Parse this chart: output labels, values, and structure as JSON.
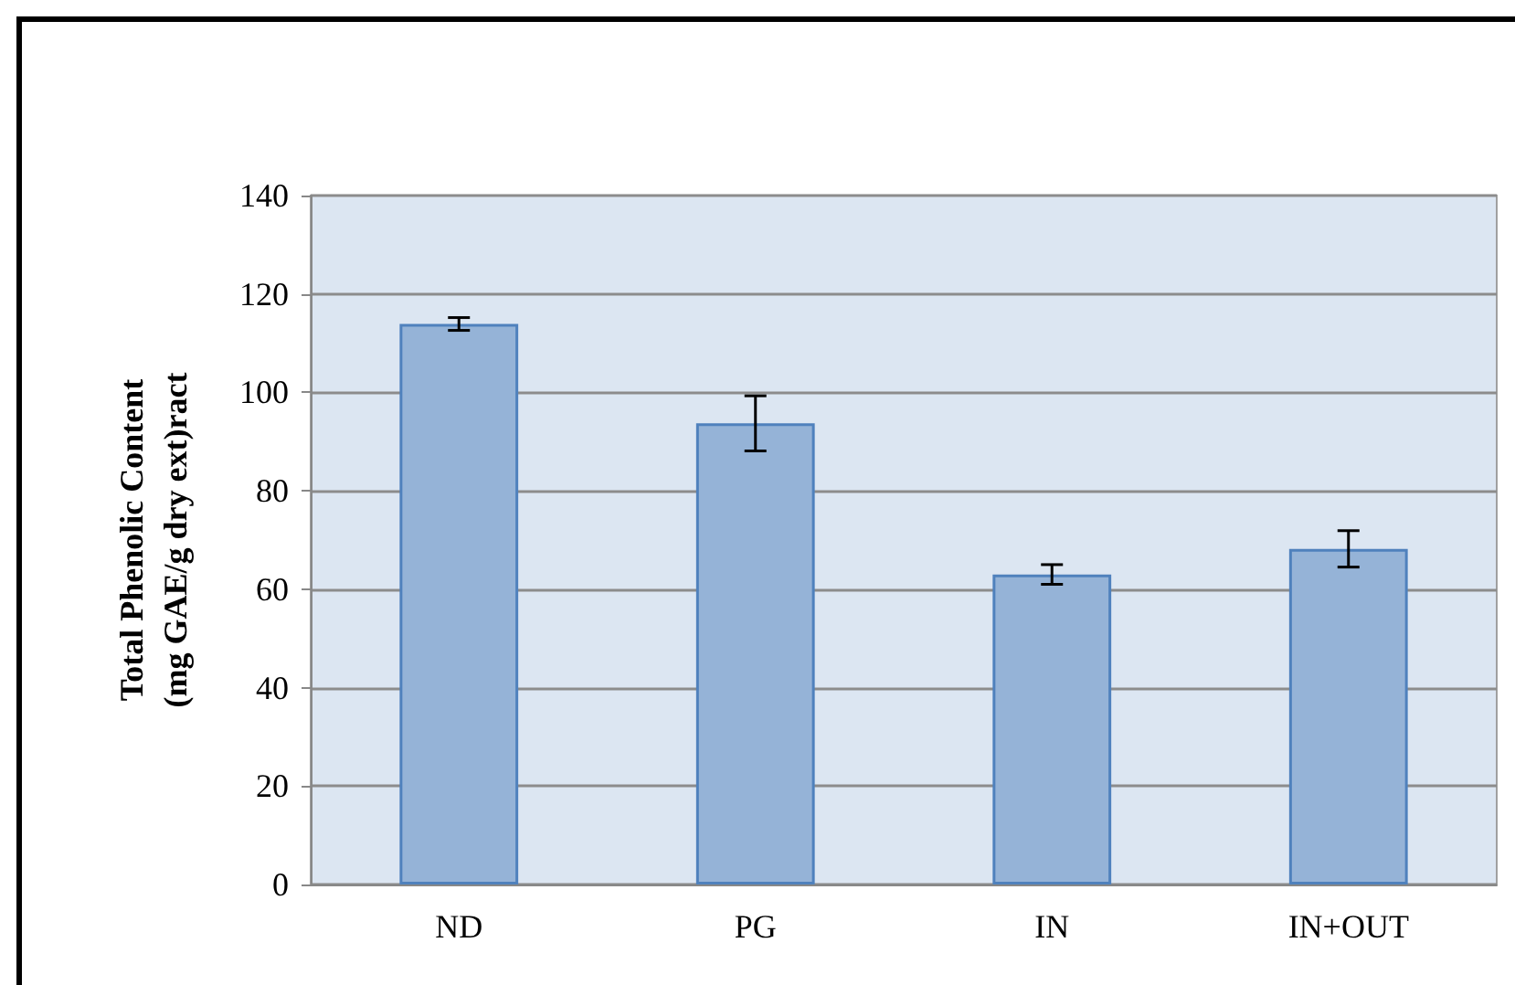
{
  "chart_data": {
    "type": "bar",
    "ylabel": "Total Phenolic Content\n(mg GAE/g dry ext)ract",
    "categories": [
      "ND",
      "PG",
      "IN",
      "IN+OUT"
    ],
    "values": [
      113.9,
      93.7,
      63,
      68.2
    ],
    "errors": [
      1.3,
      5.6,
      2,
      3.7
    ],
    "color": "#95b3d7",
    "ylim": [
      0,
      140
    ],
    "yticks": [
      0,
      20,
      40,
      60,
      80,
      100,
      120,
      140
    ],
    "grid": "y"
  }
}
